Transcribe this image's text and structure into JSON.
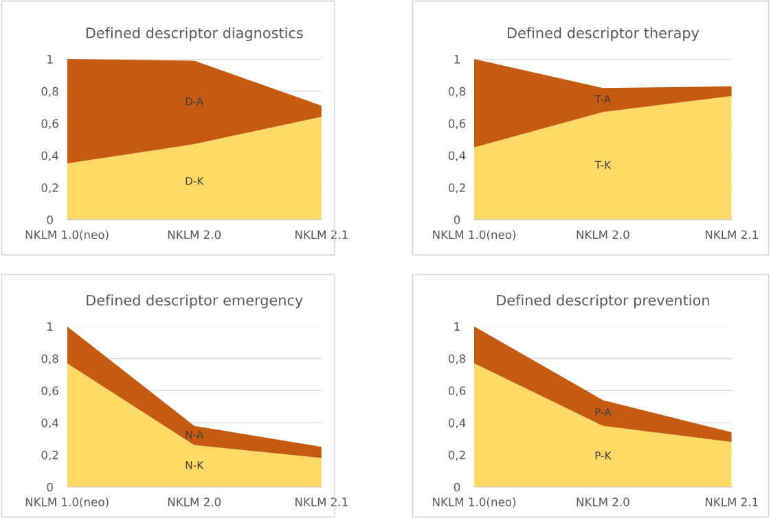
{
  "chart_data": [
    {
      "type": "area",
      "stacked": true,
      "title": "Defined descriptor diagnostics",
      "categories": [
        "NKLM 1.0(neo)",
        "NKLM 2.0",
        "NKLM 2.1"
      ],
      "ylim": [
        0,
        1
      ],
      "yticks": [
        0,
        {
          "value": 0.2,
          "label": "0,2"
        },
        {
          "value": 0.4,
          "label": "0,4"
        },
        {
          "value": 0.6,
          "label": "0,6"
        },
        {
          "value": 0.8,
          "label": "0,8"
        },
        1
      ],
      "grid": "y",
      "legend": false,
      "series": [
        {
          "name": "D-K",
          "color": "#ffd966",
          "values": [
            0.35,
            0.47,
            0.64
          ]
        },
        {
          "name": "D-A",
          "color": "#c55a11",
          "values": [
            0.65,
            0.52,
            0.07
          ]
        }
      ]
    },
    {
      "type": "area",
      "stacked": true,
      "title": "Defined descriptor therapy",
      "categories": [
        "NKLM 1.0(neo)",
        "NKLM 2.0",
        "NKLM 2.1"
      ],
      "ylim": [
        0,
        1
      ],
      "yticks": [
        0,
        {
          "value": 0.2,
          "label": "0,2"
        },
        {
          "value": 0.4,
          "label": "0,4"
        },
        {
          "value": 0.6,
          "label": "0,6"
        },
        {
          "value": 0.8,
          "label": "0,8"
        },
        1
      ],
      "grid": "y",
      "legend": false,
      "series": [
        {
          "name": "T-K",
          "color": "#ffd966",
          "values": [
            0.45,
            0.67,
            0.77
          ]
        },
        {
          "name": "T-A",
          "color": "#c55a11",
          "values": [
            0.55,
            0.15,
            0.06
          ]
        }
      ]
    },
    {
      "type": "area",
      "stacked": true,
      "title": "Defined descriptor emergency",
      "categories": [
        "NKLM 1.0(neo)",
        "NKLM 2.0",
        "NKLM 2.1"
      ],
      "ylim": [
        0,
        1
      ],
      "yticks": [
        0,
        {
          "value": 0.2,
          "label": "0,2"
        },
        {
          "value": 0.4,
          "label": "0,4"
        },
        {
          "value": 0.6,
          "label": "0,6"
        },
        {
          "value": 0.8,
          "label": "0,8"
        },
        1
      ],
      "grid": "y",
      "legend": false,
      "series": [
        {
          "name": "N-K",
          "color": "#ffd966",
          "values": [
            0.77,
            0.26,
            0.18
          ]
        },
        {
          "name": "N-A",
          "color": "#c55a11",
          "values": [
            0.23,
            0.12,
            0.07
          ]
        }
      ]
    },
    {
      "type": "area",
      "stacked": true,
      "title": "Defined descriptor prevention",
      "categories": [
        "NKLM 1.0(neo)",
        "NKLM 2.0",
        "NKLM 2.1"
      ],
      "ylim": [
        0,
        1
      ],
      "yticks": [
        0,
        {
          "value": 0.2,
          "label": "0,2"
        },
        {
          "value": 0.4,
          "label": "0,4"
        },
        {
          "value": 0.6,
          "label": "0,6"
        },
        {
          "value": 0.8,
          "label": "0,8"
        },
        1
      ],
      "grid": "y",
      "legend": false,
      "series": [
        {
          "name": "P-K",
          "color": "#ffd966",
          "values": [
            0.77,
            0.38,
            0.28
          ]
        },
        {
          "name": "P-A",
          "color": "#c55a11",
          "values": [
            0.23,
            0.16,
            0.06
          ]
        }
      ]
    }
  ]
}
